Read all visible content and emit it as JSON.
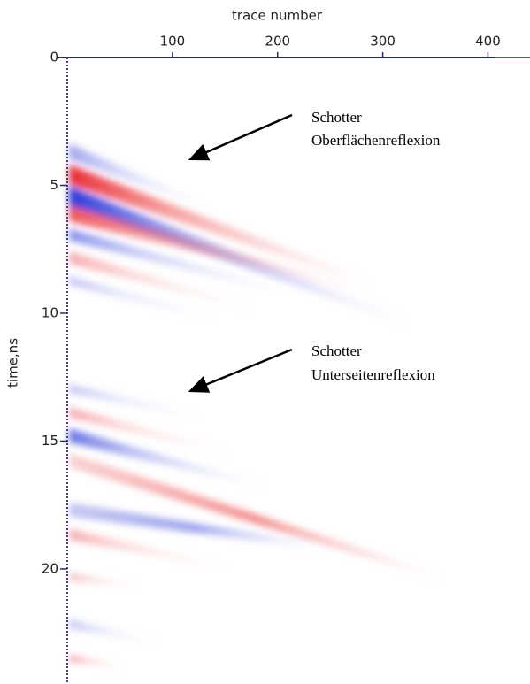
{
  "chart_data": {
    "type": "wavefield",
    "x_label": "trace number",
    "y_label": "time,ns",
    "xlim": [
      0,
      440
    ],
    "xticks": [
      100,
      200,
      300,
      400
    ],
    "ylim": [
      0,
      24.5
    ],
    "yticks": [
      0,
      5,
      10,
      15,
      20
    ],
    "y_inverted": true,
    "annotations": [
      {
        "lines": [
          "Schotter",
          "Oberflächenreflexion"
        ]
      },
      {
        "lines": [
          "Schotter",
          "Unterseitenreflexion"
        ]
      }
    ]
  }
}
